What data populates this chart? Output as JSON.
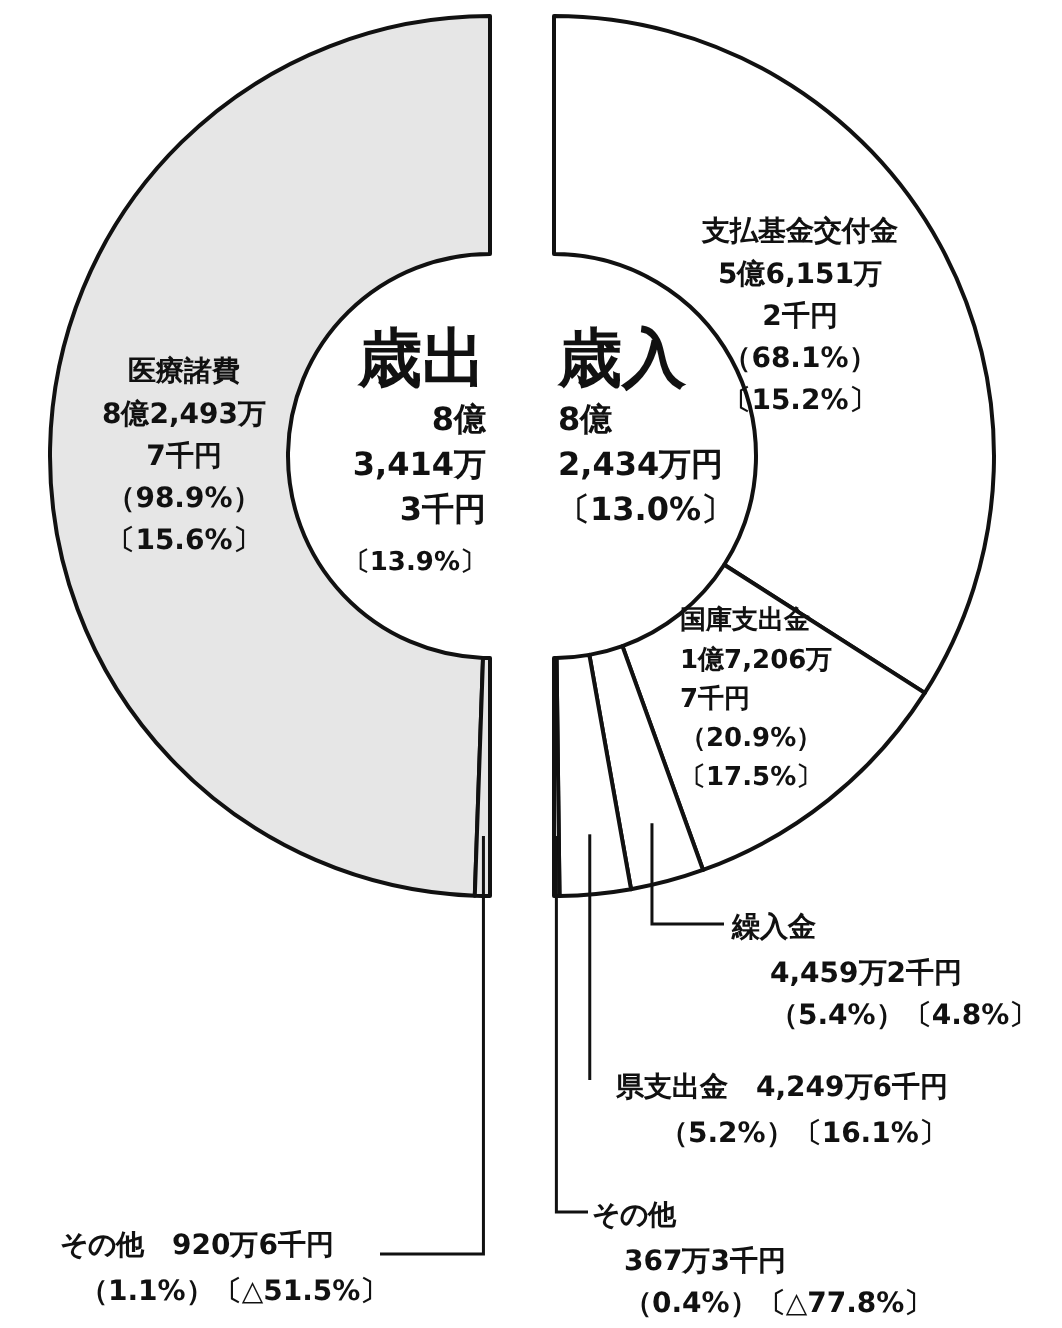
{
  "chart_data": [
    {
      "type": "donut",
      "title": "歳出",
      "annotations": [
        "8億3,414万3千円",
        "〔13.9%〕"
      ],
      "categories": [
        "医療諸費",
        "その他"
      ],
      "values": [
        98.9,
        1.1
      ],
      "colors": [
        "#e6e6e6",
        "#e6e6e6"
      ],
      "value_labels": [
        "8億2,493万7千円（98.9%）〔15.6%〕",
        "920万6千円（1.1%）〔△51.5%〕"
      ]
    },
    {
      "type": "donut",
      "title": "歳入",
      "annotations": [
        "8億2,434万円〔13.0%〕"
      ],
      "categories": [
        "支払基金交付金",
        "国庫支出金",
        "繰入金",
        "県支出金",
        "その他"
      ],
      "values": [
        68.1,
        20.9,
        5.4,
        5.2,
        0.4
      ],
      "colors": [
        "#ffffff",
        "#ffffff",
        "#ffffff",
        "#ffffff",
        "#ffffff"
      ],
      "value_labels": [
        "5億6,151万2千円（68.1%）〔15.2%〕",
        "1億7,206万7千円（20.9%）〔17.5%〕",
        "4,459万2千円（5.4%）〔4.8%〕",
        "4,249万6千円（5.2%）〔16.1%〕",
        "367万3千円（0.4%）〔△77.8%〕"
      ]
    }
  ]
}
